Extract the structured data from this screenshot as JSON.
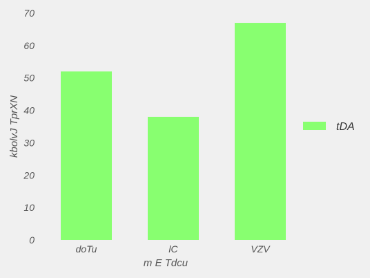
{
  "chart_data": {
    "type": "bar",
    "categories": [
      "doTu",
      "lC",
      "VZV"
    ],
    "series": [
      {
        "name": "tDA",
        "values": [
          52,
          38,
          67
        ],
        "color": "#88ff70"
      }
    ],
    "xlabel": "m E Tdcu",
    "ylabel": "kbolvJ TprXN",
    "ylim": [
      0,
      70
    ],
    "yticks": [
      0,
      10,
      20,
      30,
      40,
      50,
      60,
      70
    ],
    "grid": false,
    "legend": "right"
  }
}
